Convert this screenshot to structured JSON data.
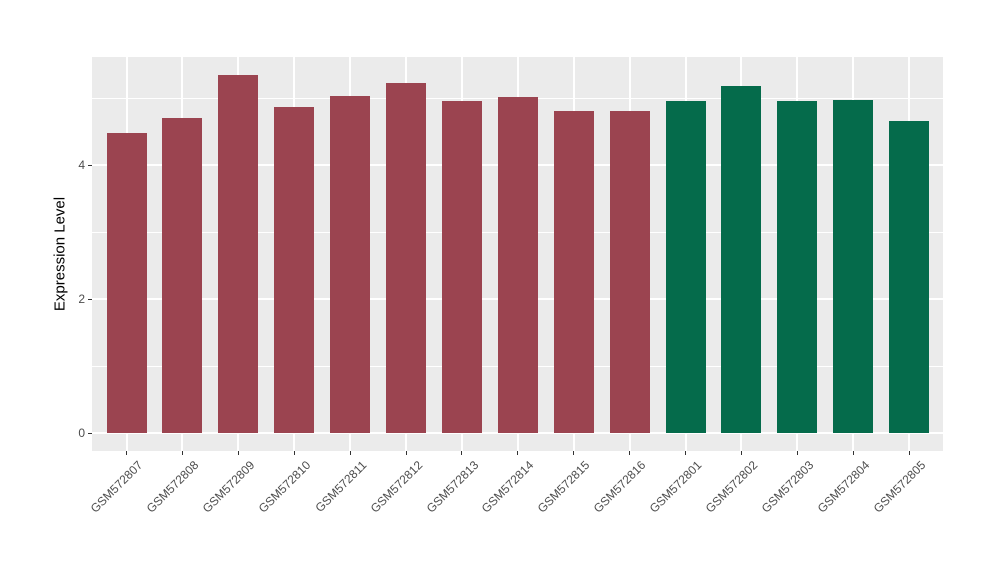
{
  "figure": {
    "background": "#FFFFFF"
  },
  "chart_data": {
    "type": "bar",
    "title": "",
    "xlabel": "",
    "ylabel": "Expression Level",
    "ylim": [
      -0.27,
      5.61
    ],
    "ylim_data": [
      0,
      5.34
    ],
    "yticks": [
      0,
      2,
      4
    ],
    "yticks_minor": [
      1,
      3,
      5
    ],
    "grid": true,
    "legend_position": "none",
    "panel_background": "#EBEBEB",
    "gridline_color": "#FFFFFF",
    "tick_mark_color": "#333333",
    "tick_label_color": "#4D4D4D",
    "axis_title_color": "#000000",
    "categories": [
      "GSM572807",
      "GSM572808",
      "GSM572809",
      "GSM572810",
      "GSM572811",
      "GSM572812",
      "GSM572813",
      "GSM572814",
      "GSM572815",
      "GSM572816",
      "GSM572801",
      "GSM572802",
      "GSM572803",
      "GSM572804",
      "GSM572805"
    ],
    "values": [
      4.48,
      4.7,
      5.34,
      4.87,
      5.03,
      5.22,
      4.96,
      5.01,
      4.81,
      4.81,
      4.96,
      5.18,
      4.96,
      4.97,
      4.66
    ],
    "bar_colors": [
      "#9B4450",
      "#9B4450",
      "#9B4450",
      "#9B4450",
      "#9B4450",
      "#9B4450",
      "#9B4450",
      "#9B4450",
      "#9B4450",
      "#9B4450",
      "#056B4B",
      "#056B4B",
      "#056B4B",
      "#056B4B",
      "#056B4B"
    ],
    "group_color_red": "#9B4450",
    "group_color_green": "#056B4B"
  }
}
